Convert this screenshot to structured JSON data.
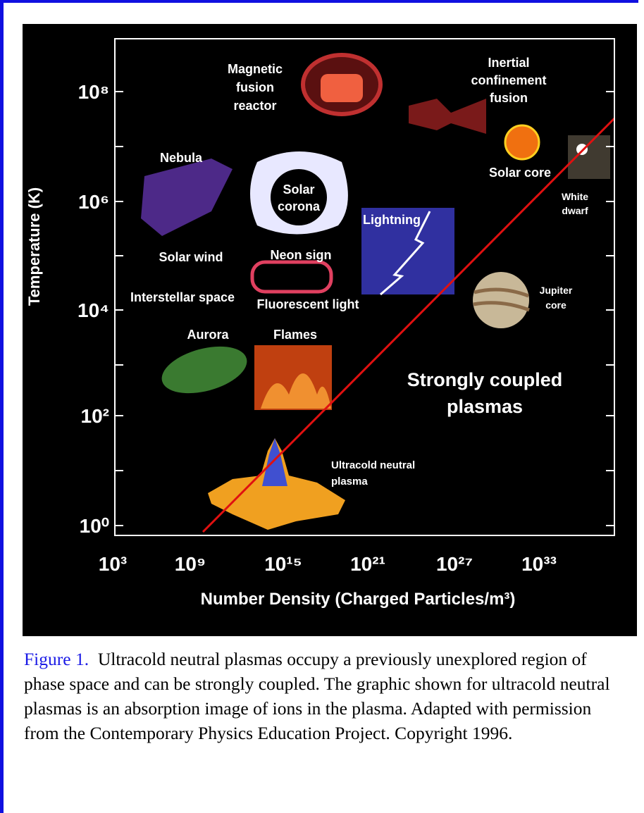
{
  "figure": {
    "y_axis_label": "Temperature (K)",
    "x_axis_label": "Number Density (Charged Particles/m³)",
    "y_tick_labels": [
      "10⁸",
      "10⁶",
      "10⁴",
      "10²",
      "10⁰"
    ],
    "x_tick_labels": [
      "10³",
      "10⁹",
      "10¹⁵",
      "10²¹",
      "10²⁷",
      "10³³"
    ],
    "annotations": [
      {
        "lines": [
          "Magnetic",
          "fusion",
          "reactor"
        ]
      },
      {
        "lines": [
          "Inertial",
          "confinement",
          "fusion"
        ]
      },
      {
        "lines": [
          "Nebula"
        ]
      },
      {
        "lines": [
          "Solar",
          "corona"
        ]
      },
      {
        "lines": [
          "Solar core"
        ]
      },
      {
        "lines": [
          "White",
          "dwarf"
        ]
      },
      {
        "lines": [
          "Lightning"
        ]
      },
      {
        "lines": [
          "Solar wind"
        ]
      },
      {
        "lines": [
          "Neon sign"
        ]
      },
      {
        "lines": [
          "Interstellar space"
        ]
      },
      {
        "lines": [
          "Fluorescent light"
        ]
      },
      {
        "lines": [
          "Jupiter",
          "core"
        ]
      },
      {
        "lines": [
          "Aurora"
        ]
      },
      {
        "lines": [
          "Flames"
        ]
      },
      {
        "lines": [
          "Strongly coupled",
          "plasmas"
        ]
      },
      {
        "lines": [
          "Ultracold neutral",
          "plasma"
        ]
      }
    ]
  },
  "caption": {
    "link": "Figure 1.",
    "text": "Ultracold neutral plasmas occupy a previously unexplored region of phase space and can be strongly coupled. The graphic shown for ultracold neutral plasmas is an absorption image of ions in the plasma. Adapted with permission from the Contemporary Physics Education Project. Copyright 1996."
  }
}
